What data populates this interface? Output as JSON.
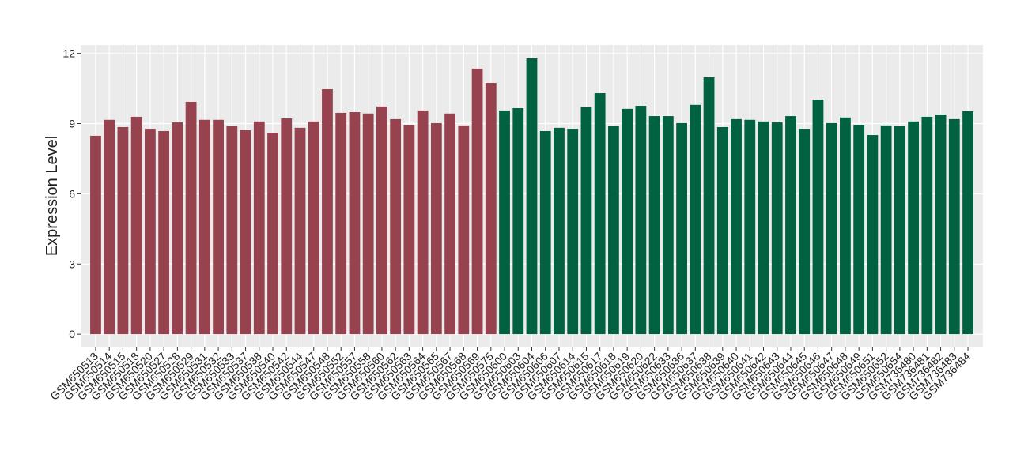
{
  "chart_data": {
    "type": "bar",
    "y_label": "Expression Level",
    "categories": [
      "GSM650513",
      "GSM650514",
      "GSM650515",
      "GSM650518",
      "GSM650520",
      "GSM650527",
      "GSM650528",
      "GSM650529",
      "GSM650531",
      "GSM650532",
      "GSM650533",
      "GSM650537",
      "GSM650538",
      "GSM650540",
      "GSM650542",
      "GSM650544",
      "GSM650547",
      "GSM650548",
      "GSM650552",
      "GSM650557",
      "GSM650558",
      "GSM650560",
      "GSM650562",
      "GSM650563",
      "GSM650564",
      "GSM650565",
      "GSM650567",
      "GSM650568",
      "GSM650569",
      "GSM650575",
      "GSM650600",
      "GSM650603",
      "GSM650604",
      "GSM650606",
      "GSM650607",
      "GSM650614",
      "GSM650615",
      "GSM650617",
      "GSM650618",
      "GSM650619",
      "GSM650620",
      "GSM650622",
      "GSM650633",
      "GSM650636",
      "GSM650637",
      "GSM650638",
      "GSM650639",
      "GSM650640",
      "GSM650641",
      "GSM650642",
      "GSM650643",
      "GSM650644",
      "GSM650645",
      "GSM650646",
      "GSM650647",
      "GSM650648",
      "GSM650649",
      "GSM650651",
      "GSM650652",
      "GSM650654",
      "GSM736480",
      "GSM736481",
      "GSM736482",
      "GSM736483",
      "GSM736484"
    ],
    "series": [
      {
        "color": "#96424f",
        "values": [
          8.48,
          9.16,
          8.85,
          9.29,
          8.78,
          8.68,
          9.05,
          9.93,
          9.16,
          9.16,
          8.89,
          8.72,
          9.09,
          8.61,
          9.22,
          8.82,
          9.09,
          10.47,
          9.46,
          9.49,
          9.43,
          9.73,
          9.19,
          8.95,
          9.56,
          9.02,
          9.43,
          8.92,
          11.35,
          10.74,
          null,
          null,
          null,
          null,
          null,
          null,
          null,
          null,
          null,
          null,
          null,
          null,
          null,
          null,
          null,
          null,
          null,
          null,
          null,
          null,
          null,
          null,
          null,
          null,
          null,
          null,
          null,
          null,
          null,
          null,
          null,
          null,
          null,
          null,
          null
        ]
      },
      {
        "color": "#006241",
        "values": [
          null,
          null,
          null,
          null,
          null,
          null,
          null,
          null,
          null,
          null,
          null,
          null,
          null,
          null,
          null,
          null,
          null,
          null,
          null,
          null,
          null,
          null,
          null,
          null,
          null,
          null,
          null,
          null,
          null,
          null,
          9.56,
          9.66,
          11.79,
          8.68,
          8.82,
          8.78,
          9.7,
          10.3,
          8.89,
          9.63,
          9.76,
          9.32,
          9.32,
          9.02,
          9.8,
          10.98,
          8.85,
          9.19,
          9.16,
          9.09,
          9.05,
          9.32,
          8.78,
          10.03,
          9.02,
          9.26,
          8.95,
          8.51,
          8.92,
          8.89,
          9.09,
          9.29,
          9.39,
          9.19,
          9.53
        ]
      }
    ],
    "ylim": [
      -0.57,
      12.36
    ],
    "yticks": [
      0,
      3,
      6,
      9,
      12
    ],
    "grid": true
  }
}
